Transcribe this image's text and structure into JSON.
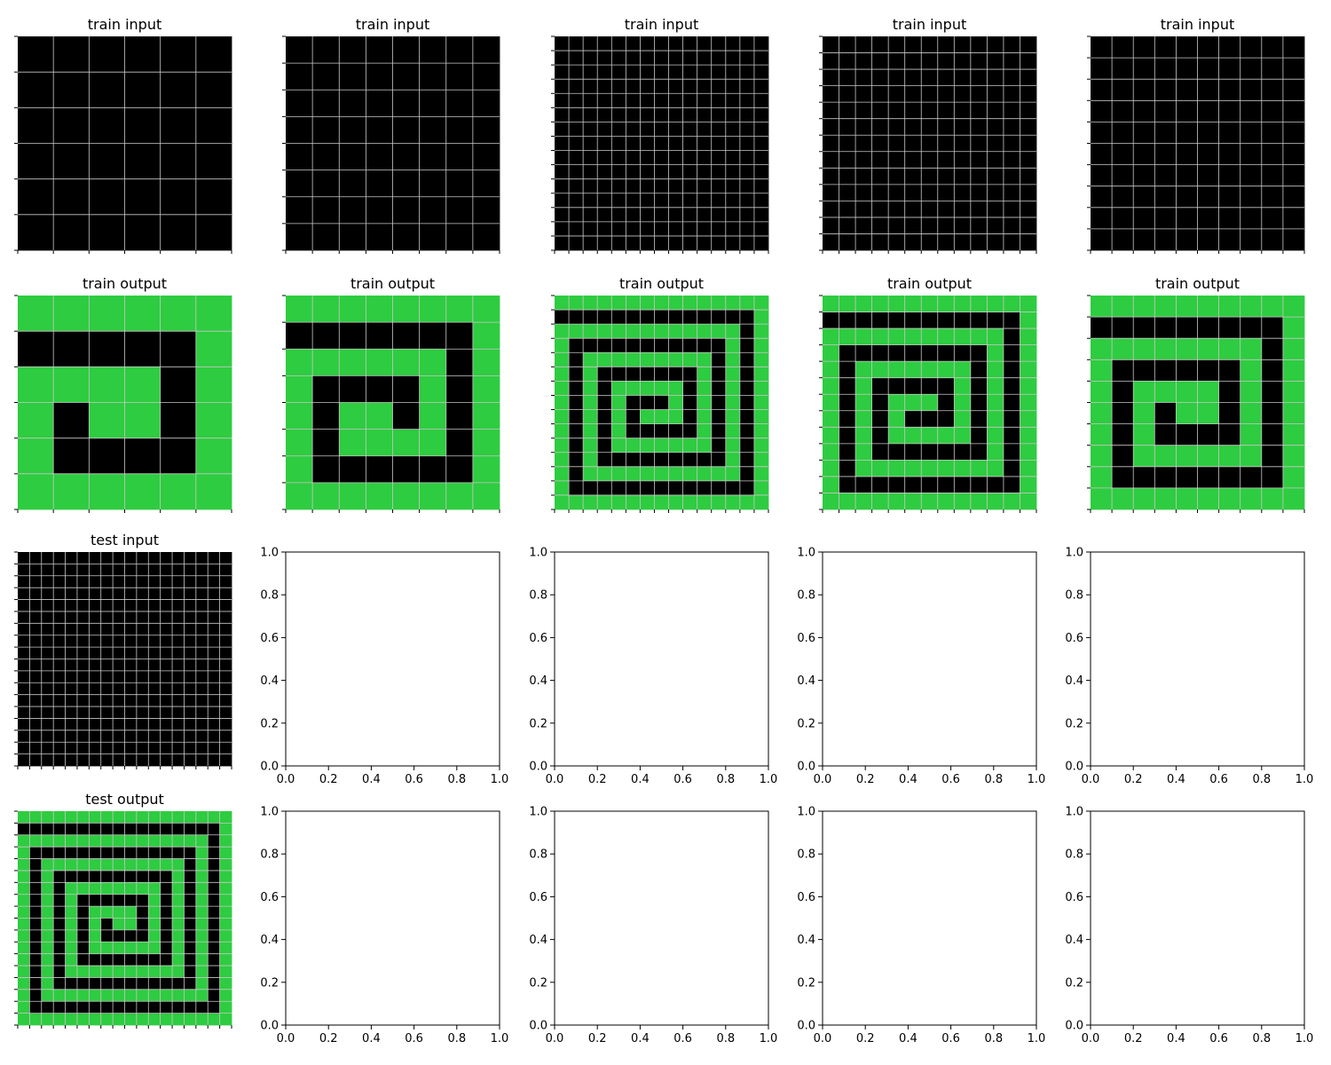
{
  "figure": {
    "background": "#ffffff",
    "colors": {
      "0": "#000000",
      "3": "#2ecc40"
    },
    "grid_color": "#c8c8c8"
  },
  "chart_data": [
    {
      "type": "heatmap",
      "title": "train input",
      "size": 6,
      "pattern": "blank"
    },
    {
      "type": "heatmap",
      "title": "train input",
      "size": 8,
      "pattern": "blank"
    },
    {
      "type": "heatmap",
      "title": "train input",
      "size": 15,
      "pattern": "blank"
    },
    {
      "type": "heatmap",
      "title": "train input",
      "size": 13,
      "pattern": "blank"
    },
    {
      "type": "heatmap",
      "title": "train input",
      "size": 10,
      "pattern": "blank"
    },
    {
      "type": "heatmap",
      "title": "train output",
      "size": 6,
      "pattern": "spiral",
      "fill": 3
    },
    {
      "type": "heatmap",
      "title": "train output",
      "size": 8,
      "pattern": "spiral",
      "fill": 3
    },
    {
      "type": "heatmap",
      "title": "train output",
      "size": 15,
      "pattern": "spiral",
      "fill": 3
    },
    {
      "type": "heatmap",
      "title": "train output",
      "size": 13,
      "pattern": "spiral",
      "fill": 3
    },
    {
      "type": "heatmap",
      "title": "train output",
      "size": 10,
      "pattern": "spiral",
      "fill": 3
    },
    {
      "type": "heatmap",
      "title": "test input",
      "size": 18,
      "pattern": "blank"
    },
    {
      "type": "empty",
      "xlim": [
        0,
        1
      ],
      "ylim": [
        0,
        1
      ],
      "ticks": [
        "0.0",
        "0.2",
        "0.4",
        "0.6",
        "0.8",
        "1.0"
      ]
    },
    {
      "type": "empty",
      "xlim": [
        0,
        1
      ],
      "ylim": [
        0,
        1
      ],
      "ticks": [
        "0.0",
        "0.2",
        "0.4",
        "0.6",
        "0.8",
        "1.0"
      ]
    },
    {
      "type": "empty",
      "xlim": [
        0,
        1
      ],
      "ylim": [
        0,
        1
      ],
      "ticks": [
        "0.0",
        "0.2",
        "0.4",
        "0.6",
        "0.8",
        "1.0"
      ]
    },
    {
      "type": "empty",
      "xlim": [
        0,
        1
      ],
      "ylim": [
        0,
        1
      ],
      "ticks": [
        "0.0",
        "0.2",
        "0.4",
        "0.6",
        "0.8",
        "1.0"
      ]
    },
    {
      "type": "heatmap",
      "title": "test output",
      "size": 18,
      "pattern": "spiral",
      "fill": 3
    },
    {
      "type": "empty",
      "xlim": [
        0,
        1
      ],
      "ylim": [
        0,
        1
      ],
      "ticks": [
        "0.0",
        "0.2",
        "0.4",
        "0.6",
        "0.8",
        "1.0"
      ]
    },
    {
      "type": "empty",
      "xlim": [
        0,
        1
      ],
      "ylim": [
        0,
        1
      ],
      "ticks": [
        "0.0",
        "0.2",
        "0.4",
        "0.6",
        "0.8",
        "1.0"
      ]
    },
    {
      "type": "empty",
      "xlim": [
        0,
        1
      ],
      "ylim": [
        0,
        1
      ],
      "ticks": [
        "0.0",
        "0.2",
        "0.4",
        "0.6",
        "0.8",
        "1.0"
      ]
    },
    {
      "type": "empty",
      "xlim": [
        0,
        1
      ],
      "ylim": [
        0,
        1
      ],
      "ticks": [
        "0.0",
        "0.2",
        "0.4",
        "0.6",
        "0.8",
        "1.0"
      ]
    }
  ]
}
